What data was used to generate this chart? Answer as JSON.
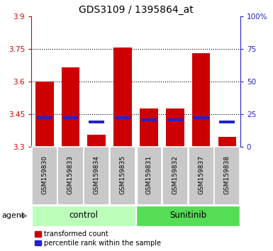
{
  "title": "GDS3109 / 1395864_at",
  "samples": [
    "GSM159830",
    "GSM159833",
    "GSM159834",
    "GSM159835",
    "GSM159831",
    "GSM159832",
    "GSM159837",
    "GSM159838"
  ],
  "red_values": [
    3.6,
    3.665,
    3.355,
    3.755,
    3.475,
    3.475,
    3.73,
    3.345
  ],
  "blue_values": [
    3.435,
    3.435,
    3.415,
    3.435,
    3.425,
    3.425,
    3.435,
    3.415
  ],
  "ymin": 3.3,
  "ymax": 3.9,
  "yticks": [
    3.3,
    3.45,
    3.6,
    3.75,
    3.9
  ],
  "ytick_labels": [
    "3.3",
    "3.45",
    "3.6",
    "3.75",
    "3.9"
  ],
  "right_yticks": [
    0,
    25,
    50,
    75,
    100
  ],
  "right_ytick_labels": [
    "0",
    "25",
    "50",
    "75",
    "100%"
  ],
  "bar_width": 0.7,
  "red_color": "#CC0000",
  "blue_color": "#2222CC",
  "control_bg": "#BBFFBB",
  "sunitinib_bg": "#55DD55",
  "sample_bg_color": "#C8C8C8",
  "axis_color_left": "#CC0000",
  "axis_color_right": "#2222CC",
  "legend_red_label": "transformed count",
  "legend_blue_label": "percentile rank within the sample",
  "agent_label": "agent",
  "group_names": [
    "control",
    "Sunitinib"
  ],
  "dotted_lines": [
    3.45,
    3.6,
    3.75
  ],
  "title_fontsize": 10,
  "tick_fontsize": 7.5,
  "sample_fontsize": 6.5,
  "group_fontsize": 8.5,
  "legend_fontsize": 7
}
